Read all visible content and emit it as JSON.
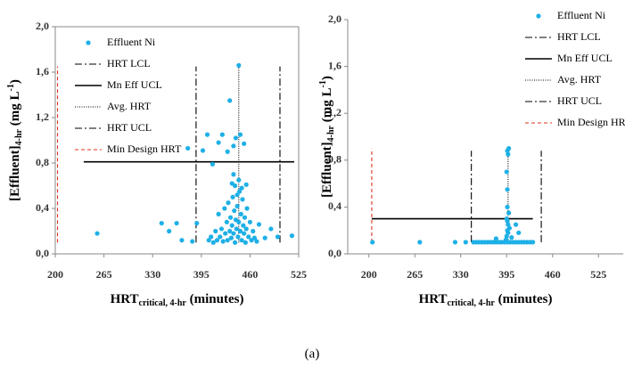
{
  "chart_data": [
    {
      "type": "scatter",
      "xlabel_parts": [
        "HRT",
        "critical, 4-hr",
        " (minutes)"
      ],
      "ylabel_parts": [
        "[Effluent]",
        "4-hr",
        " (mg L",
        "-1",
        ")"
      ],
      "xlim": [
        200,
        525
      ],
      "xticks": [
        200,
        265,
        330,
        395,
        460,
        525
      ],
      "ylim": [
        0,
        2
      ],
      "yticks": [
        {
          "value": 0,
          "label": "0,0"
        },
        {
          "value": 0.4,
          "label": "0,4"
        },
        {
          "value": 0.8,
          "label": "0,8"
        },
        {
          "value": 1.2,
          "label": "1,2"
        },
        {
          "value": 1.6,
          "label": "1,6"
        },
        {
          "value": 2,
          "label": "2,0"
        }
      ],
      "frame": true,
      "grid": false,
      "legend": "upper left",
      "series": [
        {
          "name": "Effluent Ni",
          "color": "#1eb0e6",
          "x": [
            256,
            342,
            352,
            362,
            369,
            377,
            383,
            389,
            397,
            403,
            410,
            418,
            423,
            430,
            433,
            438,
            441,
            445,
            447,
            452,
            455,
            472,
            480,
            488,
            497,
            516,
            405,
            408,
            411,
            414,
            416,
            418,
            420,
            422,
            424,
            426,
            427,
            429,
            430,
            431,
            433,
            434,
            435,
            436,
            437,
            438,
            439,
            440,
            441,
            442,
            443,
            444,
            445,
            446,
            447,
            448,
            449,
            450,
            451,
            452,
            453,
            454,
            455,
            456,
            458,
            460,
            462,
            464,
            466,
            469,
            440,
            445,
            438,
            449,
            443,
            436
          ],
          "y": [
            0.18,
            0.27,
            0.2,
            0.27,
            0.12,
            0.93,
            0.11,
            0.27,
            0.91,
            1.05,
            0.79,
            0.98,
            1.05,
            0.9,
            1.35,
            0.95,
            1.02,
            1.66,
            1.05,
            0.97,
            0.61,
            0.26,
            0.14,
            0.22,
            0.15,
            0.16,
            0.12,
            0.15,
            0.1,
            0.2,
            0.12,
            0.35,
            0.15,
            0.22,
            0.11,
            0.4,
            0.18,
            0.28,
            0.12,
            0.45,
            0.2,
            0.32,
            0.14,
            0.25,
            0.5,
            0.18,
            0.38,
            0.1,
            0.3,
            0.22,
            0.42,
            0.15,
            0.28,
            0.55,
            0.2,
            0.35,
            0.12,
            0.48,
            0.25,
            0.18,
            0.32,
            0.1,
            0.22,
            0.4,
            0.15,
            0.28,
            0.12,
            0.2,
            0.14,
            0.11,
            0.6,
            0.65,
            0.7,
            0.58,
            0.52,
            0.62
          ]
        }
      ],
      "reference_lines": [
        {
          "name": "HRT LCL",
          "color": "#000000",
          "dash": "dashdot",
          "orientation": "vertical",
          "value": 388,
          "from": 0.1,
          "to": 1.65
        },
        {
          "name": "Mn Eff UCL",
          "color": "#000000",
          "dash": "solid",
          "orientation": "horizontal",
          "value": 0.81,
          "from": 238,
          "to": 519
        },
        {
          "name": "Avg. HRT",
          "color": "#000000",
          "dash": "dotted",
          "orientation": "vertical",
          "value": 445,
          "from": 0.1,
          "to": 1.65
        },
        {
          "name": "HRT UCL",
          "color": "#000000",
          "dash": "dashdot",
          "orientation": "vertical",
          "value": 500,
          "from": 0.1,
          "to": 1.65
        },
        {
          "name": "Min Design HRT",
          "color": "#e0301e",
          "dash": "dashed",
          "orientation": "vertical",
          "value": 203,
          "from": 0.1,
          "to": 1.65
        }
      ]
    },
    {
      "type": "scatter",
      "xlabel_parts": [
        "HRT",
        "critical, 4-hr",
        " (minutes)"
      ],
      "ylabel_parts": [
        "[Effluent]",
        "4-hr",
        " (mg L",
        "-1",
        ")"
      ],
      "xlim": [
        170,
        560
      ],
      "xticks": [
        200,
        265,
        330,
        395,
        460,
        525
      ],
      "ylim": [
        0,
        2
      ],
      "yticks": [
        {
          "value": 0,
          "label": "0,0"
        },
        {
          "value": 0.4,
          "label": "0,4"
        },
        {
          "value": 0.8,
          "label": "0,8"
        },
        {
          "value": 1.2,
          "label": "1,2"
        },
        {
          "value": 1.6,
          "label": "1,6"
        },
        {
          "value": 2,
          "label": "2,0"
        }
      ],
      "frame": false,
      "grid": false,
      "legend": "upper right",
      "series": [
        {
          "name": "Effluent Ni",
          "color": "#1eb0e6",
          "x": [
            205,
            272,
            322,
            337,
            348,
            352,
            356,
            360,
            364,
            368,
            372,
            376,
            380,
            384,
            388,
            392,
            396,
            400,
            404,
            408,
            412,
            416,
            420,
            424,
            428,
            432,
            395,
            396,
            397,
            395,
            398,
            396,
            394,
            397,
            399,
            396,
            395,
            397,
            396,
            398,
            396,
            408,
            412,
            380,
            402
          ],
          "y": [
            0.1,
            0.1,
            0.1,
            0.1,
            0.1,
            0.1,
            0.1,
            0.1,
            0.1,
            0.1,
            0.1,
            0.1,
            0.1,
            0.1,
            0.1,
            0.1,
            0.1,
            0.1,
            0.1,
            0.1,
            0.1,
            0.1,
            0.1,
            0.1,
            0.1,
            0.1,
            0.15,
            0.2,
            0.25,
            0.3,
            0.35,
            0.4,
            0.12,
            0.18,
            0.22,
            0.28,
            0.7,
            0.85,
            0.88,
            0.9,
            0.55,
            0.25,
            0.18,
            0.13,
            0.14
          ]
        }
      ],
      "reference_lines": [
        {
          "name": "HRT LCL",
          "color": "#000000",
          "dash": "dashdot",
          "orientation": "vertical",
          "value": 345,
          "from": 0.1,
          "to": 0.88
        },
        {
          "name": "Mn Eff UCL",
          "color": "#000000",
          "dash": "solid",
          "orientation": "horizontal",
          "value": 0.3,
          "from": 204,
          "to": 432
        },
        {
          "name": "Avg. HRT",
          "color": "#000000",
          "dash": "dotted",
          "orientation": "vertical",
          "value": 397,
          "from": 0.1,
          "to": 0.88
        },
        {
          "name": "HRT UCL",
          "color": "#000000",
          "dash": "dashdot",
          "orientation": "vertical",
          "value": 444,
          "from": 0.1,
          "to": 0.88
        },
        {
          "name": "Min Design HRT",
          "color": "#e0301e",
          "dash": "dashed",
          "orientation": "vertical",
          "value": 204,
          "from": 0.1,
          "to": 0.9
        }
      ]
    }
  ],
  "caption": "(a)"
}
